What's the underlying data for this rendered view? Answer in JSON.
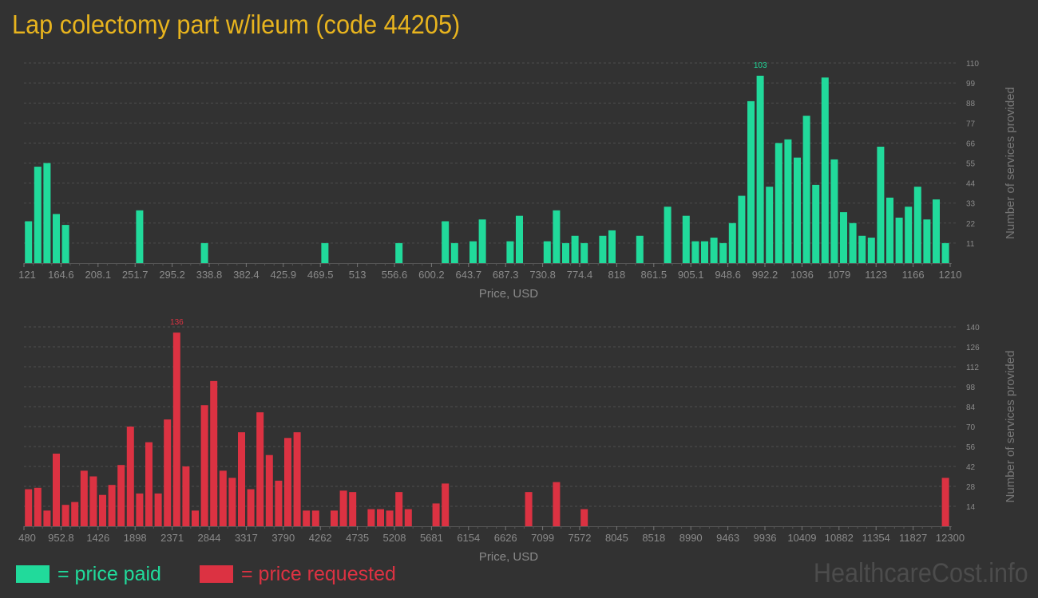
{
  "title": "Lap colectomy part w/ileum (code 44205)",
  "legend": {
    "paid": "= price paid",
    "requested": "= price requested"
  },
  "watermark": "HealthcareCost.info",
  "colors": {
    "paid": "#21da9b",
    "requested": "#dc3242",
    "title": "#e8b41e"
  },
  "chart_data": [
    {
      "type": "bar",
      "name": "price paid",
      "xlabel": "Price, USD",
      "ylabel": "Number of services provided",
      "xlim": [
        121,
        1210
      ],
      "ylim": [
        0,
        110
      ],
      "x_ticks": [
        "121",
        "164.6",
        "208.1",
        "251.7",
        "295.2",
        "338.8",
        "382.4",
        "425.9",
        "469.5",
        "513",
        "556.6",
        "600.2",
        "643.7",
        "687.3",
        "730.8",
        "774.4",
        "818",
        "861.5",
        "905.1",
        "948.6",
        "992.2",
        "1036",
        "1079",
        "1123",
        "1166",
        "1210"
      ],
      "y_ticks": [
        "11",
        "22",
        "33",
        "44",
        "55",
        "66",
        "77",
        "88",
        "99",
        "110"
      ],
      "peak_label": "103",
      "bins": 100,
      "values": [
        23,
        53,
        55,
        27,
        21,
        0,
        0,
        0,
        0,
        0,
        0,
        0,
        29,
        0,
        0,
        0,
        0,
        0,
        0,
        11,
        0,
        0,
        0,
        0,
        0,
        0,
        0,
        0,
        0,
        0,
        0,
        0,
        11,
        0,
        0,
        0,
        0,
        0,
        0,
        0,
        11,
        0,
        0,
        0,
        0,
        23,
        11,
        0,
        12,
        24,
        0,
        0,
        12,
        26,
        0,
        0,
        12,
        29,
        11,
        15,
        11,
        0,
        15,
        18,
        0,
        0,
        15,
        0,
        0,
        31,
        0,
        26,
        12,
        12,
        14,
        11,
        22,
        37,
        89,
        103,
        42,
        66,
        68,
        58,
        81,
        43,
        102,
        57,
        28,
        22,
        15,
        14,
        64,
        36,
        25,
        31,
        42,
        24,
        35,
        11
      ]
    },
    {
      "type": "bar",
      "name": "price requested",
      "xlabel": "Price, USD",
      "ylabel": "Number of services provided",
      "xlim": [
        480,
        12300
      ],
      "ylim": [
        0,
        140
      ],
      "x_ticks": [
        "480",
        "952.8",
        "1426",
        "1898",
        "2371",
        "2844",
        "3317",
        "3790",
        "4262",
        "4735",
        "5208",
        "5681",
        "6154",
        "6626",
        "7099",
        "7572",
        "8045",
        "8518",
        "8990",
        "9463",
        "9936",
        "10409",
        "10882",
        "11354",
        "11827",
        "12300"
      ],
      "y_ticks": [
        "14",
        "28",
        "42",
        "56",
        "70",
        "84",
        "98",
        "112",
        "126",
        "140"
      ],
      "peak_label": "136",
      "bins": 100,
      "values": [
        26,
        27,
        11,
        51,
        15,
        17,
        39,
        35,
        22,
        29,
        43,
        70,
        23,
        59,
        23,
        75,
        136,
        42,
        11,
        85,
        102,
        39,
        34,
        66,
        26,
        80,
        50,
        32,
        62,
        66,
        11,
        11,
        0,
        11,
        25,
        24,
        0,
        12,
        12,
        11,
        24,
        12,
        0,
        0,
        16,
        30,
        0,
        0,
        0,
        0,
        0,
        0,
        0,
        0,
        24,
        0,
        0,
        31,
        0,
        0,
        12,
        0,
        0,
        0,
        0,
        0,
        0,
        0,
        0,
        0,
        0,
        0,
        0,
        0,
        0,
        0,
        0,
        0,
        0,
        0,
        0,
        0,
        0,
        0,
        0,
        0,
        0,
        0,
        0,
        0,
        0,
        0,
        0,
        0,
        0,
        0,
        0,
        0,
        0,
        34
      ]
    }
  ]
}
